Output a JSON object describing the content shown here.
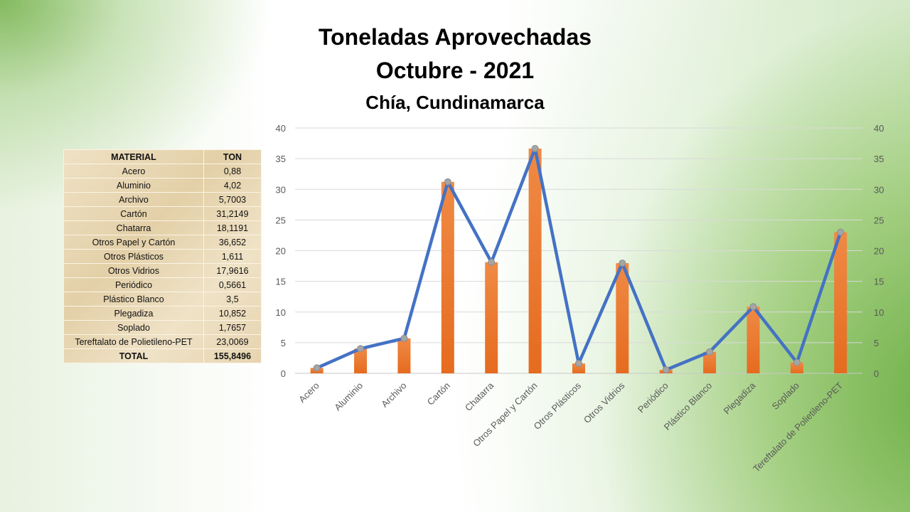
{
  "title": "Toneladas Aprovechadas",
  "subtitle": "Octubre - 2021",
  "location": "Chía, Cundinamarca",
  "table": {
    "headers": [
      "MATERIAL",
      "TON"
    ],
    "rows": [
      [
        "Acero",
        "0,88"
      ],
      [
        "Aluminio",
        "4,02"
      ],
      [
        "Archivo",
        "5,7003"
      ],
      [
        "Cartón",
        "31,2149"
      ],
      [
        "Chatarra",
        "18,1191"
      ],
      [
        "Otros Papel y Cartón",
        "36,652"
      ],
      [
        "Otros Plásticos",
        "1,611"
      ],
      [
        "Otros Vidrios",
        "17,9616"
      ],
      [
        "Periódico",
        "0,5661"
      ],
      [
        "Plástico Blanco",
        "3,5"
      ],
      [
        "Plegadiza",
        "10,852"
      ],
      [
        "Soplado",
        "1,7657"
      ],
      [
        "Tereftalato de Polietileno-PET",
        "23,0069"
      ]
    ],
    "total": [
      "TOTAL",
      "155,8496"
    ]
  },
  "chart_data": {
    "type": "bar",
    "title": "Toneladas Aprovechadas Octubre - 2021",
    "categories": [
      "Acero",
      "Aluminio",
      "Archivo",
      "Cartón",
      "Chatarra",
      "Otros Papel y Cartón",
      "Otros Plásticos",
      "Otros Vidrios",
      "Periódico",
      "Plástico Blanco",
      "Plegadiza",
      "Soplado",
      "Tereftalato de Polietileno-PET"
    ],
    "series": [
      {
        "name": "TON (bar)",
        "type": "bar",
        "color": "#ed7d31",
        "values": [
          0.88,
          4.02,
          5.7003,
          31.2149,
          18.1191,
          36.652,
          1.611,
          17.9616,
          0.5661,
          3.5,
          10.852,
          1.7657,
          23.0069
        ]
      },
      {
        "name": "TON (line)",
        "type": "line",
        "color": "#4472c4",
        "values": [
          0.88,
          4.02,
          5.7003,
          31.2149,
          18.1191,
          36.652,
          1.611,
          17.9616,
          0.5661,
          3.5,
          10.852,
          1.7657,
          23.0069
        ]
      }
    ],
    "ylim": [
      0,
      40
    ],
    "yticks": [
      "0",
      "5",
      "10",
      "15",
      "20",
      "25",
      "30",
      "35",
      "40"
    ],
    "secondary_ylim": [
      0,
      40
    ],
    "grid": true,
    "xlabel": "",
    "ylabel": ""
  }
}
